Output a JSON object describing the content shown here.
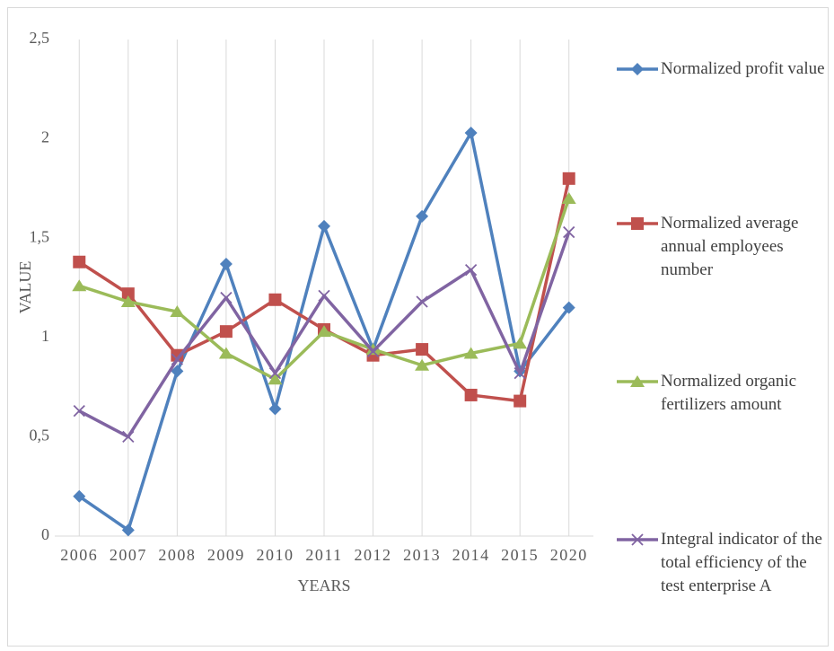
{
  "chart_data": {
    "type": "line",
    "xlabel": "YEARS",
    "ylabel": "VALUE",
    "categories": [
      "2006",
      "2007",
      "2008",
      "2009",
      "2010",
      "2011",
      "2012",
      "2013",
      "2014",
      "2015",
      "2020"
    ],
    "series": [
      {
        "name": "Normalized profit value",
        "color": "#4f81bd",
        "marker": "diamond",
        "values": [
          0.2,
          0.03,
          0.83,
          1.37,
          0.64,
          1.56,
          0.94,
          1.61,
          2.03,
          0.83,
          1.15
        ]
      },
      {
        "name": "Normalized average annual employees number",
        "color": "#c0504d",
        "marker": "square",
        "values": [
          1.38,
          1.22,
          0.91,
          1.03,
          1.19,
          1.04,
          0.91,
          0.94,
          0.71,
          0.68,
          1.8
        ]
      },
      {
        "name": "Normalized organic fertilizers amount",
        "color": "#9bbb59",
        "marker": "triangle",
        "values": [
          1.26,
          1.18,
          1.13,
          0.92,
          0.79,
          1.03,
          0.94,
          0.86,
          0.92,
          0.97,
          1.7
        ]
      },
      {
        "name": "Integral indicator of the total efficiency of the test enterprise A",
        "color": "#8064a2",
        "marker": "x",
        "values": [
          0.63,
          0.5,
          0.89,
          1.2,
          0.82,
          1.21,
          0.93,
          1.18,
          1.34,
          0.82,
          1.53
        ]
      }
    ],
    "ylim": [
      0,
      2.5
    ],
    "yticks": [
      0,
      {
        "value": 0.5,
        "label": "0,5"
      },
      1,
      {
        "value": 1.5,
        "label": "1,5"
      },
      2,
      {
        "value": 2.5,
        "label": "2,5"
      }
    ],
    "grid": "x",
    "legend": "right"
  }
}
